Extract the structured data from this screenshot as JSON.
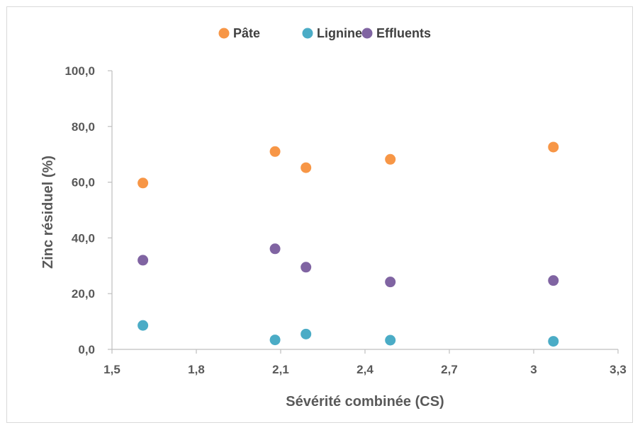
{
  "chart_data": {
    "type": "scatter",
    "title": "",
    "xlabel": "Sévérité combinée (CS)",
    "ylabel": "Zinc résiduel (%)",
    "xlim": [
      1.5,
      3.3
    ],
    "ylim": [
      0,
      100
    ],
    "x_ticks": [
      {
        "value": 1.5,
        "label": "1,5"
      },
      {
        "value": 1.8,
        "label": "1,8"
      },
      {
        "value": 2.1,
        "label": "2,1"
      },
      {
        "value": 2.4,
        "label": "2,4"
      },
      {
        "value": 2.7,
        "label": "2,7"
      },
      {
        "value": 3.0,
        "label": "3"
      },
      {
        "value": 3.3,
        "label": "3,3"
      }
    ],
    "y_ticks": [
      {
        "value": 0,
        "label": "0,0"
      },
      {
        "value": 20,
        "label": "20,0"
      },
      {
        "value": 40,
        "label": "40,0"
      },
      {
        "value": 60,
        "label": "60,0"
      },
      {
        "value": 80,
        "label": "80,0"
      },
      {
        "value": 100,
        "label": "100,0"
      }
    ],
    "grid": false,
    "legend_position": "top-center",
    "series": [
      {
        "name": "Pâte",
        "color": "#f79646",
        "points": [
          [
            1.61,
            59.7
          ],
          [
            2.08,
            71.0
          ],
          [
            2.19,
            65.2
          ],
          [
            2.49,
            68.2
          ],
          [
            3.07,
            72.6
          ]
        ]
      },
      {
        "name": "Lignine",
        "color": "#4bacc6",
        "points": [
          [
            1.61,
            8.6
          ],
          [
            2.08,
            3.4
          ],
          [
            2.19,
            5.5
          ],
          [
            2.49,
            3.3
          ],
          [
            3.07,
            2.9
          ]
        ]
      },
      {
        "name": "Effluents",
        "color": "#8064a2",
        "points": [
          [
            1.61,
            32.0
          ],
          [
            2.08,
            36.1
          ],
          [
            2.19,
            29.5
          ],
          [
            2.49,
            24.2
          ],
          [
            3.07,
            24.7
          ]
        ]
      }
    ]
  }
}
